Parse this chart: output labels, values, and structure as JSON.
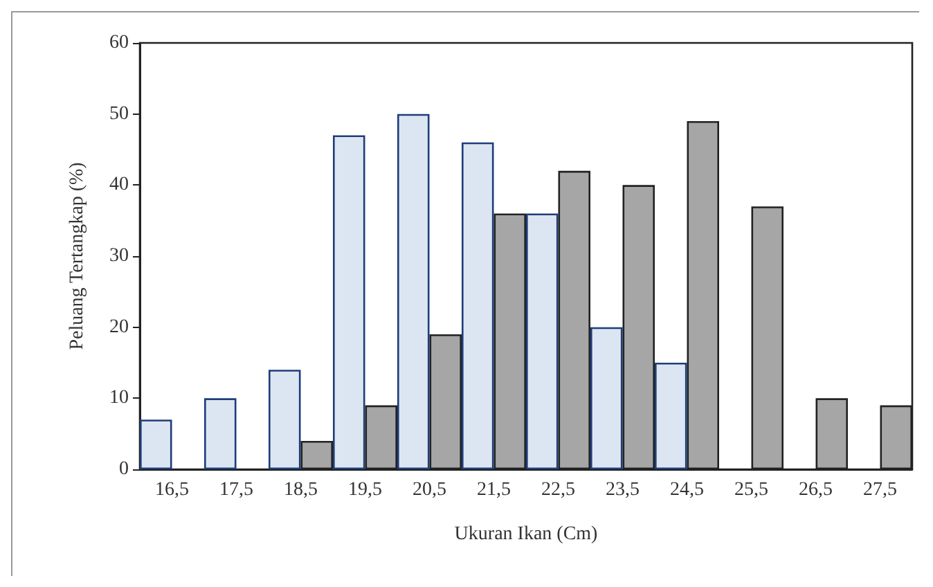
{
  "chart_data": {
    "type": "bar",
    "xlabel": "Ukuran Ikan (Cm)",
    "ylabel": "Peluang Tertangkap (%)",
    "categories": [
      "16,5",
      "17,5",
      "18,5",
      "19,5",
      "20,5",
      "21,5",
      "22,5",
      "23,5",
      "24,5",
      "25,5",
      "26,5",
      "27,5"
    ],
    "series": [
      {
        "color": "#dce6f2",
        "values": [
          7,
          10,
          14,
          47,
          50,
          46,
          36,
          20,
          15,
          0,
          0,
          0
        ]
      },
      {
        "color": "#a6a6a6",
        "values": [
          0,
          0,
          4,
          9,
          19,
          36,
          42,
          40,
          49,
          37,
          10,
          9
        ]
      }
    ],
    "ylim": [
      0,
      60
    ],
    "yticks": [
      0,
      10,
      20,
      30,
      40,
      50,
      60
    ],
    "grid": false
  }
}
